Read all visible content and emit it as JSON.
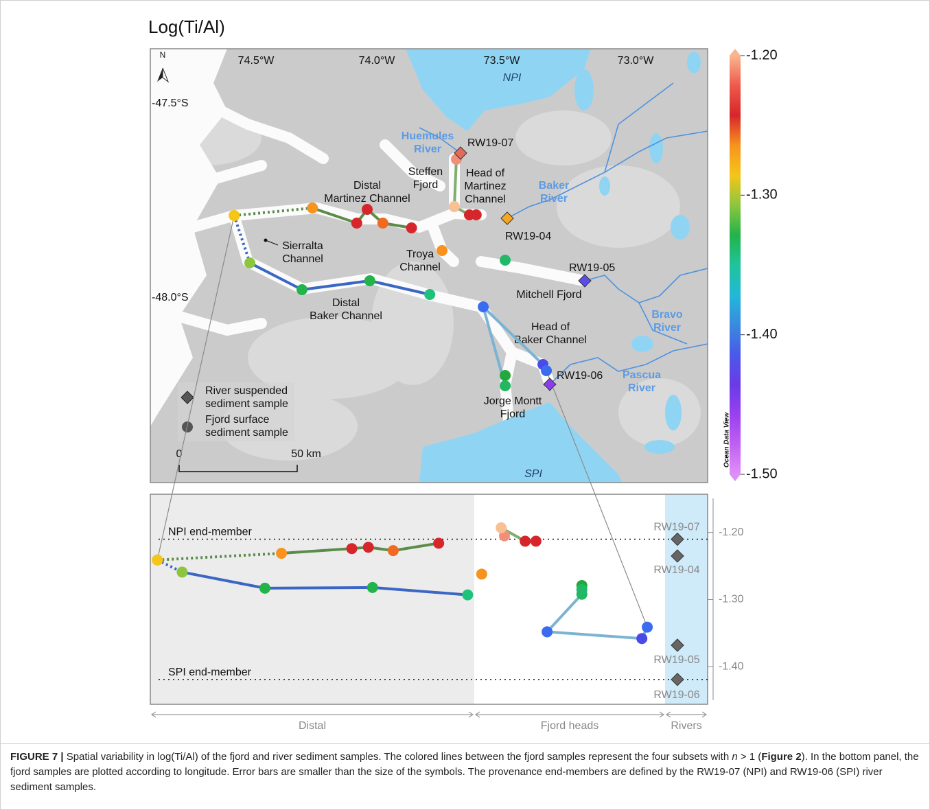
{
  "title": "Log(Ti/Al)",
  "map": {
    "lon_labels": [
      "74.5°W",
      "74.0°W",
      "73.5°W",
      "73.0°W"
    ],
    "lat_labels": [
      "-47.5°S",
      "-48.0°S"
    ],
    "north": "N",
    "places": [
      [
        "NPI"
      ],
      [
        "Huemules",
        "River"
      ],
      [
        "Steffen",
        "Fjord"
      ],
      [
        "Head of",
        "Martinez",
        "Channel"
      ],
      [
        "Distal",
        "Martinez Channel"
      ],
      [
        "Baker",
        "River"
      ],
      [
        "Sierralta",
        "Channel"
      ],
      [
        "Troya",
        "Channel"
      ],
      [
        "Mitchell Fjord"
      ],
      [
        "Distal",
        "Baker Channel"
      ],
      [
        "Head of",
        "Baker Channel"
      ],
      [
        "Bravo",
        "River"
      ],
      [
        "Pascua",
        "River"
      ],
      [
        "Jorge Montt",
        "Fjord"
      ],
      [
        "SPI"
      ]
    ],
    "legend": [
      [
        "River suspended",
        "sediment sample"
      ],
      [
        "Fjord surface",
        "sediment sample"
      ]
    ],
    "scale": [
      "0",
      "50 km"
    ]
  },
  "colorbar": {
    "lim": [
      -1.5,
      -1.2
    ],
    "ticks": [
      {
        "value": -1.2,
        "label": "-1.20"
      },
      {
        "value": -1.3,
        "label": "-1.30"
      },
      {
        "value": -1.4,
        "label": "-1.40"
      },
      {
        "value": -1.5,
        "label": "-1.50"
      }
    ],
    "colors": [
      "#f9b58f",
      "#ee5a4a",
      "#d7262b",
      "#f7931e",
      "#f5c518",
      "#8cc63f",
      "#22b34a",
      "#1fc49a",
      "#22b8d8",
      "#3a8ae0",
      "#4a5ae8",
      "#6a3ae8",
      "#9a40ee",
      "#c060f2",
      "#e08ff8"
    ],
    "label": "Ocean Data View"
  },
  "chart_data": {
    "type": "line",
    "ylim": [
      -1.456,
      -1.143
    ],
    "yticks": [
      {
        "value": -1.2,
        "label": "-1.20"
      },
      {
        "value": -1.3,
        "label": "-1.30"
      },
      {
        "value": -1.4,
        "label": "-1.40"
      }
    ],
    "reference_lines": [
      {
        "label": "NPI end-member",
        "value": -1.21
      },
      {
        "label": "SPI end-member",
        "value": -1.419
      }
    ],
    "sections": [
      {
        "label": "Distal",
        "xlim": [
          74.577,
          73.794
        ],
        "series": [
          {
            "x": [
              74.56,
              74.26,
              74.09,
              74.05,
              73.99,
              73.88
            ],
            "values": [
              -1.241,
              -1.231,
              -1.224,
              -1.222,
              -1.227,
              -1.216
            ],
            "colors": [
              "#f5c518",
              "#f7931e",
              "#d7262b",
              "#d7262b",
              "#f26a21",
              "#d7262b"
            ],
            "line_color": "#5b8c4a",
            "first_segment_dotted": true
          },
          {
            "x": [
              74.56,
              74.5,
              74.3,
              74.04,
              73.81
            ],
            "values": [
              -1.241,
              -1.259,
              -1.283,
              -1.282,
              -1.293
            ],
            "colors": [
              "#f5c518",
              "#8cc63f",
              "#22b34a",
              "#22b34a",
              "#1fc27a"
            ],
            "line_color": "#3b66c4",
            "first_segment_dotted": true
          }
        ]
      },
      {
        "label": "Fjord heads",
        "xlim": [
          73.781,
          73.32
        ],
        "series": [
          {
            "x": [
              73.763
            ],
            "values": [
              -1.262
            ],
            "colors": [
              "#f7931e"
            ],
            "line_color": "#7fae6f",
            "first_segment_dotted": false
          },
          {
            "x": [
              73.708,
              73.716,
              73.658,
              73.632
            ],
            "values": [
              -1.205,
              -1.193,
              -1.213,
              -1.213
            ],
            "colors": [
              "#f0907a",
              "#f9bf95",
              "#d7262b",
              "#d7262b"
            ],
            "line_color": "#7fae6f",
            "first_segment_dotted": false
          },
          {
            "x": [
              73.521,
              73.521,
              73.605,
              73.376,
              73.363
            ],
            "values": [
              -1.279,
              -1.292,
              -1.348,
              -1.358,
              -1.341
            ],
            "colors": [
              "#23a83a",
              "#22b860",
              "#3b6cf0",
              "#4a4ae8",
              "#3b6cf0"
            ],
            "line_color": "#7ab4d2",
            "first_segment_dotted": false
          },
          {
            "x": [
              73.521
            ],
            "values": [
              -1.285
            ],
            "colors": [
              "#22b86a"
            ],
            "line_color": "#7ab4d2",
            "first_segment_dotted": false
          }
        ]
      },
      {
        "label": "Rivers",
        "categories": [
          "RW19-07",
          "RW19-04",
          "RW19-05",
          "RW19-06"
        ],
        "values": [
          -1.21,
          -1.235,
          -1.368,
          -1.419
        ],
        "colors": [
          "#e46a5a",
          "#f5a623",
          "#5b4ee8",
          "#8a3ee8"
        ],
        "color": "#666666"
      }
    ]
  },
  "caption": [
    {
      "text": "FIGURE 7 |",
      "style": "bold"
    },
    {
      "text": " Spatial variability in log(Ti/Al) of the fjord and river sediment samples. The colored lines between the fjord samples represent the four subsets with ",
      "style": "normal"
    },
    {
      "text": "n",
      "style": "italic"
    },
    {
      "text": " > 1 (",
      "style": "normal"
    },
    {
      "text": "Figure 2",
      "style": "bold"
    },
    {
      "text": "). In the bottom panel, the fjord samples are plotted according to longitude. Error bars are smaller than the size of the symbols. The provenance end-members are defined by the RW19-07 (NPI) and RW19-06 (SPI) river sediment samples.",
      "style": "normal"
    }
  ]
}
